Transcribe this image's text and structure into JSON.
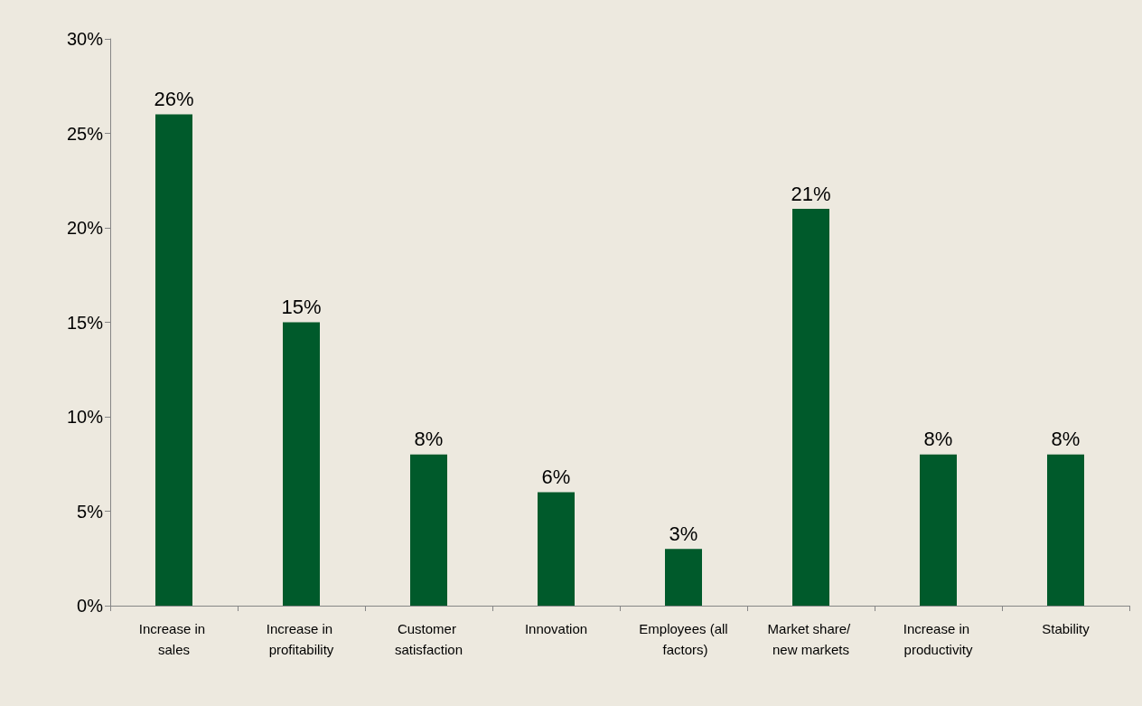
{
  "chart_data": {
    "type": "bar",
    "categories": [
      "Increase in sales",
      "Increase in profitability",
      "Customer satisfaction",
      "Innovation",
      "Employees (all factors)",
      "Market share/ new markets",
      "Increase in productivity",
      "Stability"
    ],
    "values": [
      26,
      15,
      8,
      6,
      3,
      21,
      8,
      8
    ],
    "value_labels": [
      "26%",
      "15%",
      "8%",
      "6%",
      "3%",
      "21%",
      "8%",
      "8%"
    ],
    "color": "#005a2b",
    "ylim": [
      0,
      30
    ],
    "yticks": [
      {
        "value": 0,
        "label": "0%"
      },
      {
        "value": 5,
        "label": "5%"
      },
      {
        "value": 10,
        "label": "10%"
      },
      {
        "value": 15,
        "label": "15%"
      },
      {
        "value": 20,
        "label": "20%"
      },
      {
        "value": 25,
        "label": "25%"
      },
      {
        "value": 30,
        "label": "30%"
      }
    ],
    "grid": false
  }
}
